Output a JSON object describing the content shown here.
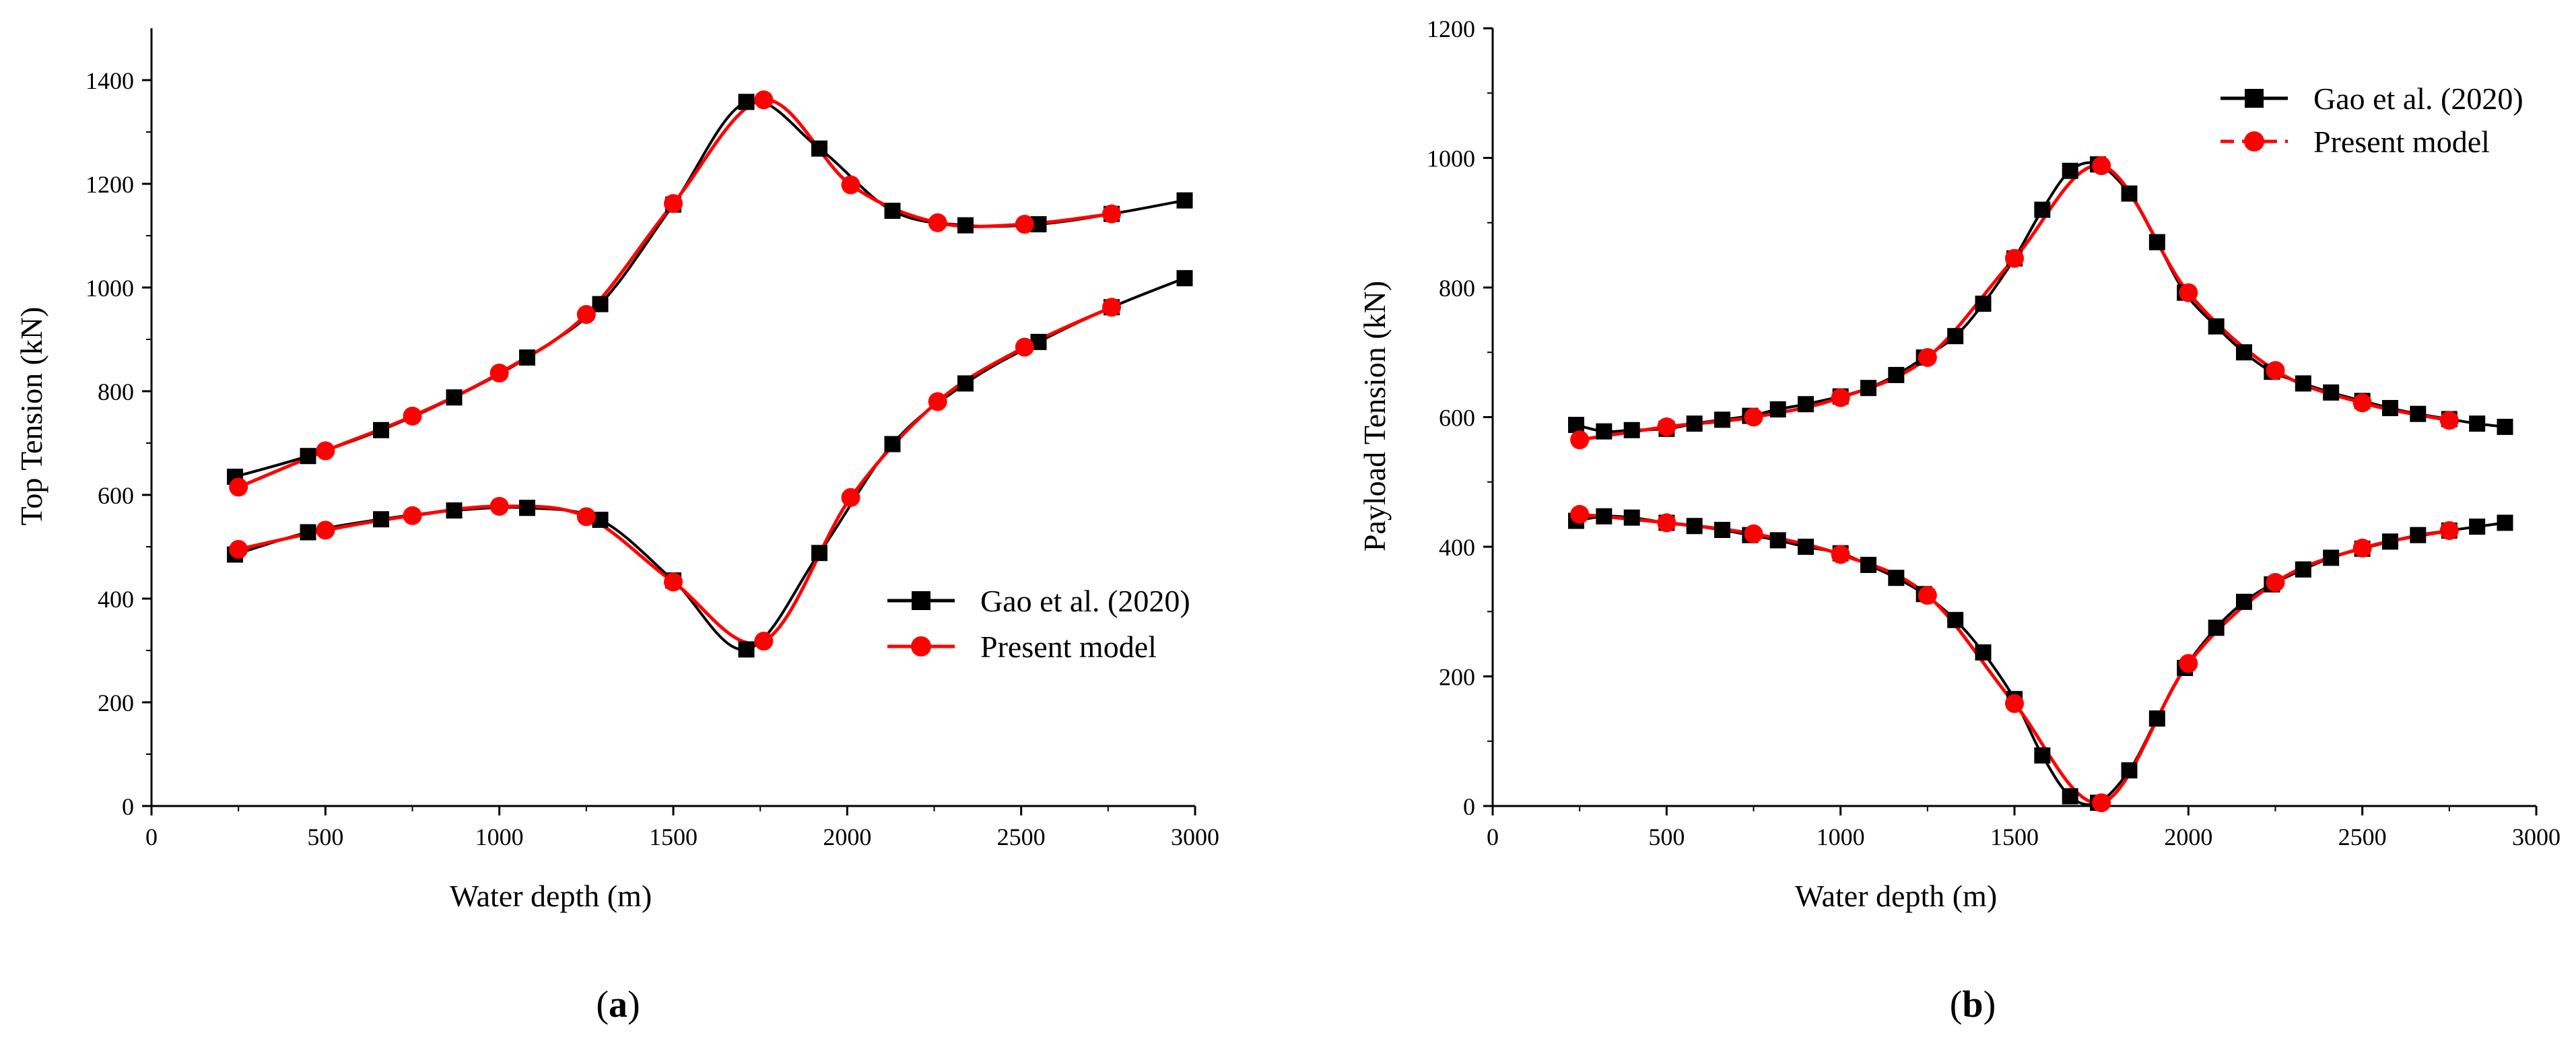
{
  "chart_data": [
    {
      "type": "line",
      "caption_open": "(",
      "caption_letter": "a",
      "caption_close": ")",
      "xlabel": "Water depth (m)",
      "ylabel": "Top Tension (kN)",
      "xlim": [
        0,
        3000
      ],
      "ylim": [
        0,
        1500
      ],
      "xticks": [
        0,
        500,
        1000,
        1500,
        2000,
        2500,
        3000
      ],
      "yticks": [
        0,
        200,
        400,
        600,
        800,
        1000,
        1200,
        1400
      ],
      "legend_position": "center-right",
      "series": [
        {
          "name": "Gao et al. (2020)",
          "color": "#000000",
          "marker": "square",
          "line_style": "solid",
          "branches": [
            {
              "x": [
                240,
                450,
                660,
                870,
                1080,
                1290,
                1500,
                1710,
                1920,
                2130,
                2340,
                2550,
                2760,
                2970
              ],
              "y": [
                635,
                675,
                725,
                788,
                865,
                968,
                1160,
                1358,
                1268,
                1148,
                1120,
                1122,
                1142,
                1168
              ]
            },
            {
              "x": [
                240,
                450,
                660,
                870,
                1080,
                1290,
                1500,
                1710,
                1920,
                2130,
                2340,
                2550,
                2760,
                2970
              ],
              "y": [
                485,
                528,
                553,
                570,
                575,
                552,
                435,
                302,
                488,
                698,
                815,
                895,
                962,
                1018
              ]
            }
          ]
        },
        {
          "name": "Present model",
          "color": "#ff0000",
          "marker": "circle",
          "line_style": "solid",
          "branches": [
            {
              "x": [
                250,
                500,
                750,
                1000,
                1250,
                1500,
                1760,
                2010,
                2260,
                2510,
                2760
              ],
              "y": [
                615,
                685,
                752,
                835,
                948,
                1162,
                1362,
                1198,
                1125,
                1122,
                1142
              ]
            },
            {
              "x": [
                250,
                500,
                750,
                1000,
                1250,
                1500,
                1760,
                2010,
                2260,
                2510,
                2760
              ],
              "y": [
                495,
                532,
                560,
                578,
                558,
                432,
                318,
                595,
                780,
                885,
                962
              ]
            }
          ]
        }
      ]
    },
    {
      "type": "line",
      "caption_open": "(",
      "caption_letter": "b",
      "caption_close": ")",
      "xlabel": "Water depth (m)",
      "ylabel": "Payload Tension (kN)",
      "xlim": [
        0,
        3000
      ],
      "ylim": [
        0,
        1200
      ],
      "xticks": [
        0,
        500,
        1000,
        1500,
        2000,
        2500,
        3000
      ],
      "yticks": [
        0,
        200,
        400,
        600,
        800,
        1000,
        1200
      ],
      "legend_position": "top-right",
      "series": [
        {
          "name": "Gao et al. (2020)",
          "color": "#000000",
          "marker": "square",
          "line_style": "solid",
          "branches": [
            {
              "x": [
                240,
                320,
                400,
                500,
                580,
                660,
                740,
                820,
                900,
                1000,
                1080,
                1160,
                1240,
                1330,
                1410,
                1500,
                1580,
                1660,
                1740,
                1830,
                1910,
                1990,
                2080,
                2160,
                2240,
                2330,
                2410,
                2500,
                2580,
                2660,
                2750,
                2830,
                2910
              ],
              "y": [
                588,
                578,
                580,
                582,
                590,
                596,
                602,
                612,
                620,
                632,
                645,
                665,
                692,
                725,
                775,
                845,
                920,
                980,
                990,
                945,
                870,
                792,
                740,
                700,
                670,
                652,
                638,
                625,
                614,
                605,
                597,
                590,
                585
              ]
            },
            {
              "x": [
                240,
                320,
                400,
                500,
                580,
                660,
                740,
                820,
                900,
                1000,
                1080,
                1160,
                1240,
                1330,
                1410,
                1500,
                1580,
                1660,
                1740,
                1830,
                1910,
                1990,
                2080,
                2160,
                2240,
                2330,
                2410,
                2500,
                2580,
                2660,
                2750,
                2830,
                2910
              ],
              "y": [
                440,
                447,
                445,
                437,
                432,
                426,
                418,
                410,
                400,
                390,
                372,
                352,
                327,
                287,
                237,
                165,
                78,
                15,
                5,
                55,
                135,
                213,
                275,
                315,
                342,
                365,
                383,
                397,
                408,
                418,
                425,
                431,
                437
              ]
            }
          ]
        },
        {
          "name": "Present model",
          "color": "#ff0000",
          "marker": "circle",
          "line_style": "dashed",
          "branches": [
            {
              "x": [
                250,
                500,
                750,
                1000,
                1250,
                1500,
                1750,
                2000,
                2250,
                2500,
                2750
              ],
              "y": [
                565,
                585,
                600,
                630,
                692,
                845,
                988,
                792,
                672,
                622,
                595
              ]
            },
            {
              "x": [
                250,
                500,
                750,
                1000,
                1250,
                1500,
                1750,
                2000,
                2250,
                2500,
                2750
              ],
              "y": [
                450,
                437,
                420,
                388,
                325,
                158,
                5,
                220,
                345,
                398,
                425
              ]
            }
          ]
        }
      ]
    }
  ]
}
